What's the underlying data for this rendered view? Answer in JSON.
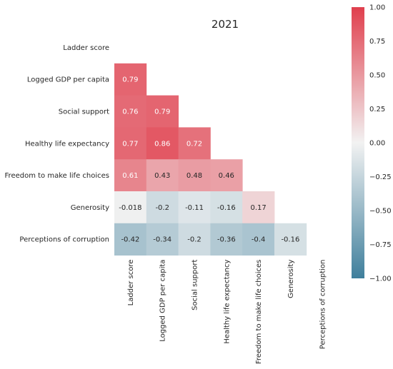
{
  "chart_data": {
    "type": "heatmap",
    "title": "2021",
    "variables": [
      "Ladder score",
      "Logged GDP per capita",
      "Social support",
      "Healthy life expectancy",
      "Freedom to make life choices",
      "Generosity",
      "Perceptions of corruption"
    ],
    "mask": "upper-triangle-and-diagonal",
    "matrix": [
      [
        null,
        null,
        null,
        null,
        null,
        null,
        null
      ],
      [
        0.79,
        null,
        null,
        null,
        null,
        null,
        null
      ],
      [
        0.76,
        0.79,
        null,
        null,
        null,
        null,
        null
      ],
      [
        0.77,
        0.86,
        0.72,
        null,
        null,
        null,
        null
      ],
      [
        0.61,
        0.43,
        0.48,
        0.46,
        null,
        null,
        null
      ],
      [
        -0.018,
        -0.2,
        -0.11,
        -0.16,
        0.17,
        null,
        null
      ],
      [
        -0.42,
        -0.34,
        -0.2,
        -0.36,
        -0.4,
        -0.16,
        null
      ]
    ],
    "annotations": [
      [
        null,
        null,
        null,
        null,
        null,
        null,
        null
      ],
      [
        "0.79",
        null,
        null,
        null,
        null,
        null,
        null
      ],
      [
        "0.76",
        "0.79",
        null,
        null,
        null,
        null,
        null
      ],
      [
        "0.77",
        "0.86",
        "0.72",
        null,
        null,
        null,
        null
      ],
      [
        "0.61",
        "0.43",
        "0.48",
        "0.46",
        null,
        null,
        null
      ],
      [
        "-0.018",
        "-0.2",
        "-0.11",
        "-0.16",
        "0.17",
        null,
        null
      ],
      [
        "-0.42",
        "-0.34",
        "-0.2",
        "-0.36",
        "-0.4",
        "-0.16",
        null
      ]
    ],
    "vmin": -1.0,
    "vmax": 1.0,
    "colormap": {
      "negative": "#3f7f9c",
      "center": "#f2f2f2",
      "positive": "#e03f4d"
    },
    "colorbar": {
      "ticks": [
        1.0,
        0.75,
        0.5,
        0.25,
        0.0,
        -0.25,
        -0.5,
        -0.75,
        -1.0
      ],
      "tick_labels": [
        "1.00",
        "0.75",
        "0.50",
        "0.25",
        "0.00",
        "−0.25",
        "−0.50",
        "−0.75",
        "−1.00"
      ]
    }
  }
}
